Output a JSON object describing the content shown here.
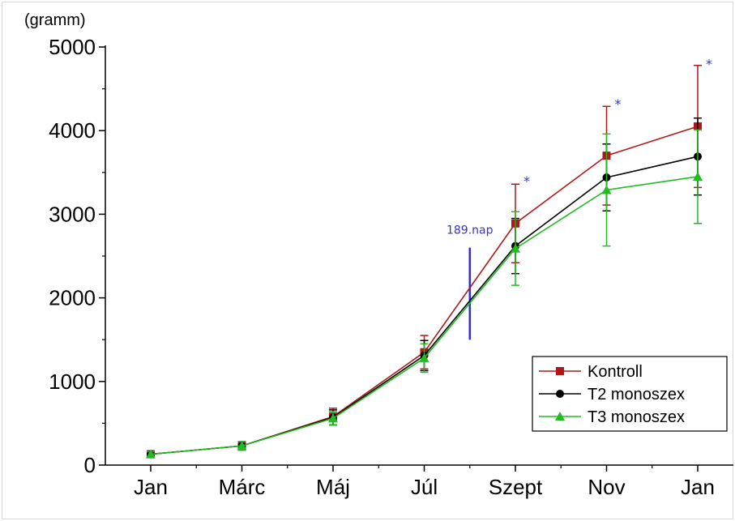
{
  "chart_data": {
    "type": "line",
    "categories": [
      "Jan",
      "Márc",
      "Máj",
      "Júl",
      "Szept",
      "Nov",
      "Jan"
    ],
    "ylabel": "(gramm)",
    "ylim": [
      0,
      5000
    ],
    "yticks": [
      0,
      1000,
      2000,
      3000,
      4000,
      5000
    ],
    "yticks_labels": [
      "0",
      "1000",
      "2000",
      "3000",
      "4000",
      "5000"
    ],
    "grid": false,
    "legend_position": "bottom-right",
    "series": [
      {
        "name": "Kontroll",
        "color": "#b01818",
        "marker": "square",
        "values": [
          130,
          230,
          580,
          1350,
          2890,
          3700,
          4050
        ],
        "error": [
          30,
          50,
          100,
          200,
          470,
          590,
          730
        ]
      },
      {
        "name": "T2 monoszex",
        "color": "#000000",
        "marker": "circle",
        "values": [
          130,
          230,
          570,
          1310,
          2620,
          3440,
          3690
        ],
        "error": [
          30,
          50,
          90,
          180,
          330,
          400,
          460
        ]
      },
      {
        "name": "T3 monoszex",
        "color": "#22bb22",
        "marker": "triangle",
        "values": [
          130,
          230,
          560,
          1280,
          2590,
          3290,
          3450
        ],
        "error": [
          30,
          50,
          80,
          170,
          440,
          670,
          560
        ]
      }
    ],
    "annotations": [
      {
        "text": "189.nap",
        "color": "#3333cc",
        "x_position": 3.5,
        "y": 3000,
        "line_from": 1500,
        "line_to": 2600
      },
      {
        "text": "*",
        "color": "#3333cc",
        "category_index": 4,
        "y": 3400
      },
      {
        "text": "*",
        "color": "#3333cc",
        "category_index": 5,
        "y": 4320
      },
      {
        "text": "*",
        "color": "#3333cc",
        "category_index": 6,
        "y": 4800
      }
    ]
  }
}
